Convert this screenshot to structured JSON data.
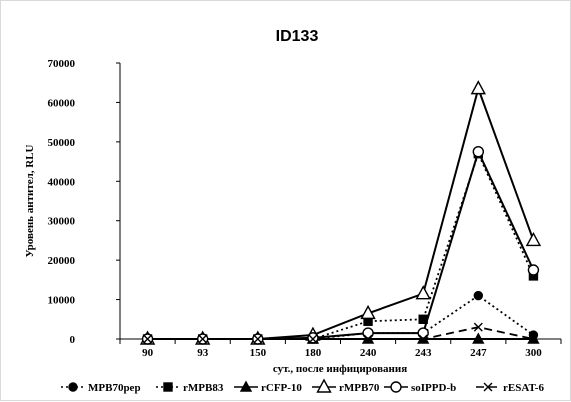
{
  "chart_data": {
    "type": "line",
    "title": "ID133",
    "xlabel": "сут., после инфицирования",
    "ylabel": "Уровень антител, RLU",
    "categories": [
      "90",
      "93",
      "150",
      "180",
      "240",
      "243",
      "247",
      "300"
    ],
    "ylim": [
      0,
      70000
    ],
    "yticks": [
      0,
      10000,
      20000,
      30000,
      40000,
      50000,
      60000,
      70000
    ],
    "ytick_labels": [
      "0",
      "10000",
      "20000",
      "30000",
      "40000",
      "50000",
      "60000",
      "70000"
    ],
    "grid": false,
    "legend_position": "bottom",
    "series": [
      {
        "name": "MPB70pep",
        "marker": "filled-circle",
        "line": "dotted",
        "values": [
          0,
          0,
          0,
          0,
          1500,
          1500,
          11000,
          1000
        ]
      },
      {
        "name": "rMPB83",
        "marker": "filled-square",
        "line": "dotted",
        "values": [
          0,
          0,
          0,
          0,
          4500,
          5000,
          47000,
          16000
        ]
      },
      {
        "name": "rCFP-10",
        "marker": "filled-triangle",
        "line": "solid",
        "values": [
          0,
          0,
          0,
          0,
          0,
          0,
          0,
          0
        ]
      },
      {
        "name": "rMPB70",
        "marker": "open-triangle",
        "line": "solid",
        "values": [
          0,
          0,
          0,
          1000,
          6500,
          11500,
          63500,
          25000
        ]
      },
      {
        "name": "soIPPD-b",
        "marker": "open-circle",
        "line": "solid",
        "values": [
          0,
          0,
          0,
          300,
          1500,
          1500,
          47500,
          17500
        ]
      },
      {
        "name": "rESAT-6",
        "marker": "x",
        "line": "dashed",
        "values": [
          0,
          0,
          0,
          0,
          0,
          0,
          3000,
          0
        ]
      }
    ]
  }
}
